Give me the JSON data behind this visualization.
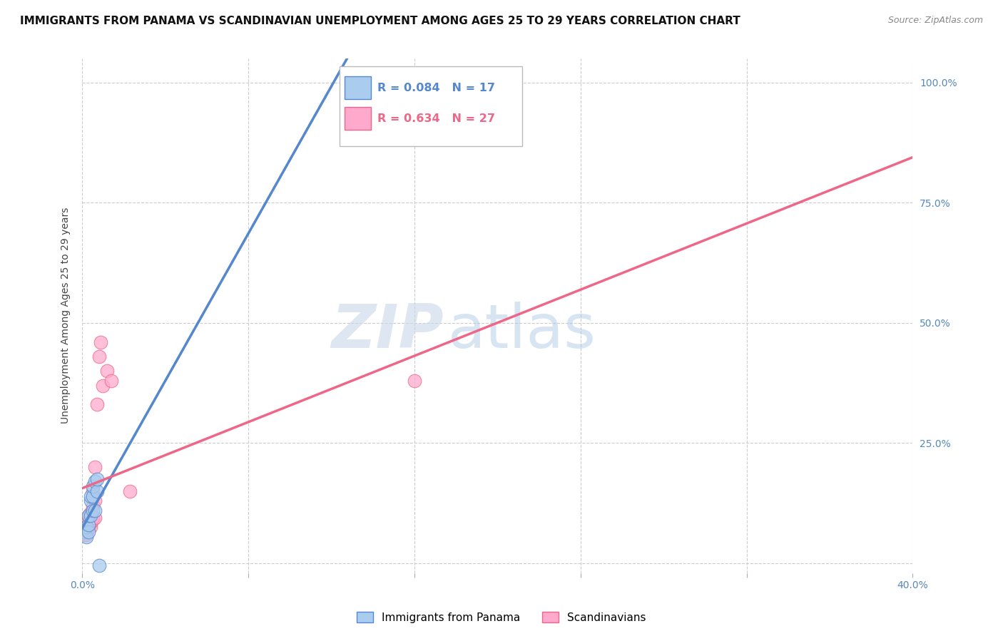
{
  "title": "IMMIGRANTS FROM PANAMA VS SCANDINAVIAN UNEMPLOYMENT AMONG AGES 25 TO 29 YEARS CORRELATION CHART",
  "source": "Source: ZipAtlas.com",
  "ylabel": "Unemployment Among Ages 25 to 29 years",
  "watermark_zip": "ZIP",
  "watermark_atlas": "atlas",
  "xlim": [
    0.0,
    0.4
  ],
  "ylim": [
    -0.02,
    1.05
  ],
  "x_ticks": [
    0.0,
    0.08,
    0.16,
    0.24,
    0.32,
    0.4
  ],
  "x_tick_labels": [
    "0.0%",
    "",
    "",
    "",
    "",
    "40.0%"
  ],
  "y_ticks_right": [
    0.0,
    0.25,
    0.5,
    0.75,
    1.0
  ],
  "y_tick_labels_right": [
    "",
    "25.0%",
    "50.0%",
    "75.0%",
    "100.0%"
  ],
  "blue_scatter_x": [
    0.001,
    0.002,
    0.002,
    0.003,
    0.003,
    0.003,
    0.004,
    0.004,
    0.004,
    0.005,
    0.005,
    0.005,
    0.006,
    0.006,
    0.007,
    0.007,
    0.008
  ],
  "blue_scatter_y": [
    0.065,
    0.055,
    0.075,
    0.065,
    0.08,
    0.1,
    0.1,
    0.13,
    0.14,
    0.11,
    0.14,
    0.16,
    0.11,
    0.17,
    0.15,
    0.175,
    -0.005
  ],
  "pink_scatter_x": [
    0.001,
    0.001,
    0.002,
    0.002,
    0.002,
    0.003,
    0.003,
    0.003,
    0.004,
    0.004,
    0.004,
    0.004,
    0.005,
    0.005,
    0.005,
    0.005,
    0.006,
    0.006,
    0.006,
    0.007,
    0.008,
    0.009,
    0.01,
    0.012,
    0.014,
    0.023,
    0.16
  ],
  "pink_scatter_y": [
    0.06,
    0.065,
    0.06,
    0.07,
    0.09,
    0.075,
    0.09,
    0.1,
    0.075,
    0.085,
    0.1,
    0.105,
    0.09,
    0.095,
    0.12,
    0.15,
    0.095,
    0.13,
    0.2,
    0.33,
    0.43,
    0.46,
    0.37,
    0.4,
    0.38,
    0.15,
    0.38
  ],
  "blue_line_color": "#5588CC",
  "pink_line_color": "#EE6688",
  "scatter_blue_facecolor": "#AACCEE",
  "scatter_blue_edgecolor": "#5588CC",
  "scatter_pink_facecolor": "#FFAACC",
  "scatter_pink_edgecolor": "#EE6688",
  "grid_color": "#CCCCCC",
  "background_color": "#FFFFFF",
  "title_fontsize": 11,
  "source_fontsize": 9,
  "legend_r_blue": "R = 0.084",
  "legend_n_blue": "N = 17",
  "legend_r_pink": "R = 0.634",
  "legend_n_pink": "N = 27"
}
